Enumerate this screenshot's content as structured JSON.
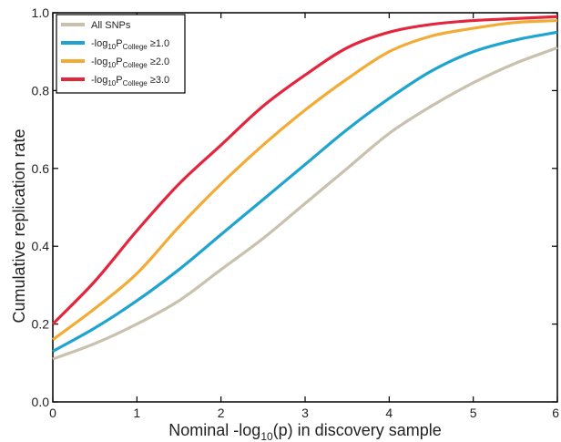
{
  "chart_data": {
    "type": "line",
    "xlabel_parts": [
      "Nominal -log",
      "10",
      "(p) in discovery sample"
    ],
    "ylabel": "Cumulative replication rate",
    "xlim": [
      0,
      6
    ],
    "ylim": [
      0,
      1.0
    ],
    "x_ticks": [
      0,
      1,
      2,
      3,
      4,
      5,
      6
    ],
    "y_ticks": [
      "0.0",
      "0.2",
      "0.4",
      "0.6",
      "0.8",
      "1.0"
    ],
    "legend_position": "top-left",
    "grid": false,
    "series": [
      {
        "name": "All SNPs",
        "legend_parts": [
          "All SNPs",
          "",
          "",
          ""
        ],
        "color": "#c9c1ad",
        "x": [
          0,
          0.5,
          1,
          1.5,
          2,
          2.5,
          3,
          3.5,
          4,
          4.5,
          5,
          5.5,
          6
        ],
        "y": [
          0.11,
          0.15,
          0.2,
          0.26,
          0.34,
          0.42,
          0.51,
          0.6,
          0.69,
          0.76,
          0.82,
          0.87,
          0.91
        ]
      },
      {
        "name": "-log10PCollege ≥1.0",
        "legend_parts": [
          "-log",
          "10",
          "P",
          "College",
          " ≥1.0"
        ],
        "color": "#1fa3cf",
        "x": [
          0,
          0.5,
          1,
          1.5,
          2,
          2.5,
          3,
          3.5,
          4,
          4.5,
          5,
          5.5,
          6
        ],
        "y": [
          0.13,
          0.19,
          0.26,
          0.34,
          0.43,
          0.52,
          0.61,
          0.7,
          0.78,
          0.85,
          0.9,
          0.93,
          0.95
        ]
      },
      {
        "name": "-log10PCollege ≥2.0",
        "legend_parts": [
          "-log",
          "10",
          "P",
          "College",
          " ≥2.0"
        ],
        "color": "#f2ac35",
        "x": [
          0,
          0.5,
          1,
          1.5,
          2,
          2.5,
          3,
          3.5,
          4,
          4.5,
          5,
          5.5,
          6
        ],
        "y": [
          0.16,
          0.24,
          0.33,
          0.45,
          0.56,
          0.66,
          0.75,
          0.83,
          0.9,
          0.94,
          0.96,
          0.975,
          0.98
        ]
      },
      {
        "name": "-log10PCollege ≥3.0",
        "legend_parts": [
          "-log",
          "10",
          "P",
          "College",
          " ≥3.0"
        ],
        "color": "#e3263e",
        "x": [
          0,
          0.5,
          1,
          1.5,
          2,
          2.5,
          3,
          3.5,
          4,
          4.5,
          5,
          5.5,
          6
        ],
        "y": [
          0.2,
          0.31,
          0.44,
          0.56,
          0.66,
          0.76,
          0.84,
          0.91,
          0.95,
          0.97,
          0.98,
          0.985,
          0.99
        ]
      }
    ]
  }
}
